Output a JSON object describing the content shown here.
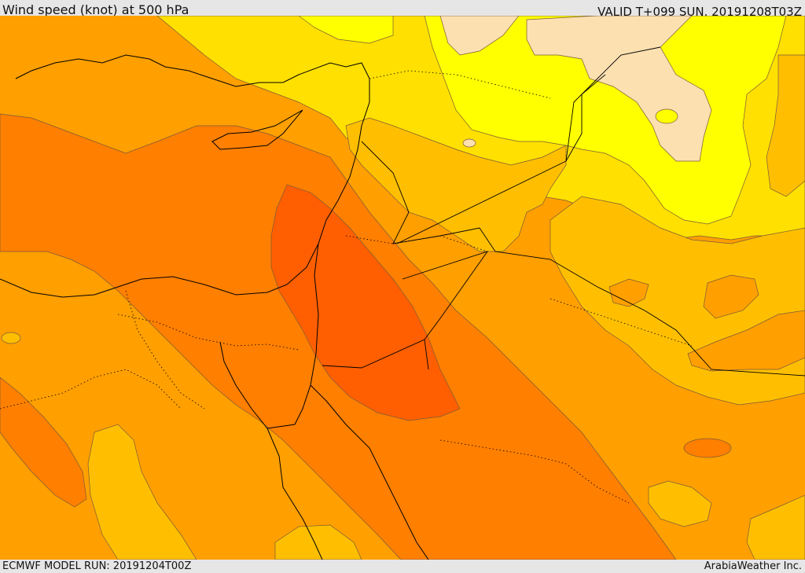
{
  "header": {
    "title": "Wind speed (knot) at 500 hPa",
    "valid": "VALID T+099 SUN. 20191208T03Z"
  },
  "footer": {
    "model_run": "ECMWF MODEL RUN: 20191204T00Z",
    "credit": "ArabiaWeather Inc."
  },
  "map": {
    "region": "Eastern Mediterranean and Middle East",
    "colors": {
      "pale_tan": "#fde0b0",
      "bright_yellow": "#ffff00",
      "yellow": "#ffe000",
      "light_orange": "#ffbf00",
      "orange": "#ff9f00",
      "dark_orange": "#ff7f00",
      "red_orange": "#ff5f00",
      "contour_line": "#7a5a3a",
      "coastline": "#000000"
    }
  }
}
